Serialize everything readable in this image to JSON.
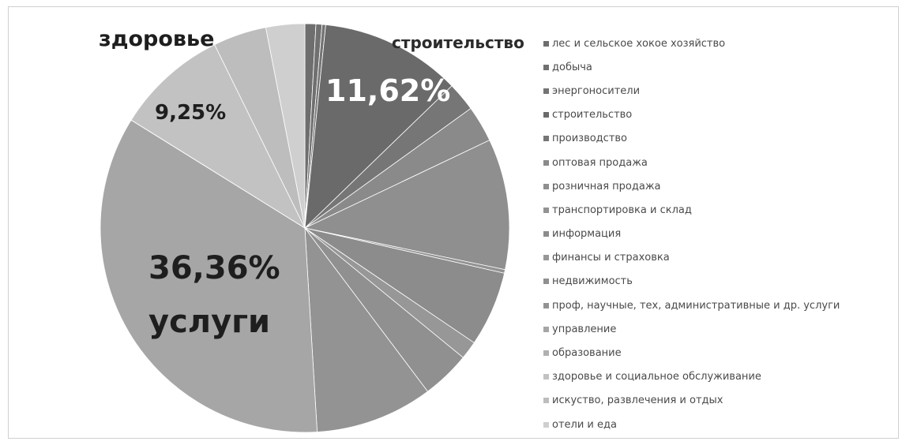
{
  "chart_data": {
    "type": "pie",
    "start_angle_deg": 0,
    "direction": "clockwise",
    "legend_position": "right",
    "labels": {
      "construction_name": "строительство",
      "construction_pct": "11,62%",
      "health_name": "здоровье",
      "health_pct": "9,25%",
      "services_pct": "36,36%",
      "services_name": "услуги"
    },
    "slices": [
      {
        "name": "лес и сельское хокое хозяйство",
        "value": 0.9,
        "color": "#6e6e6e"
      },
      {
        "name": "добыча",
        "value": 0.5,
        "color": "#707070"
      },
      {
        "name": "энергоносители",
        "value": 0.3,
        "color": "#747474"
      },
      {
        "name": "строительство",
        "value": 11.62,
        "color": "#6a6a6a"
      },
      {
        "name": "производство",
        "value": 2.4,
        "color": "#767676"
      },
      {
        "name": "оптовая продажа",
        "value": 3.0,
        "color": "#8a8a8a"
      },
      {
        "name": "розничная продажа",
        "value": 10.8,
        "color": "#8f8f8f"
      },
      {
        "name": "транспортировка и склад",
        "value": 0.3,
        "color": "#939393"
      },
      {
        "name": "информация",
        "value": 6.2,
        "color": "#8c8c8c"
      },
      {
        "name": "финансы и страховка",
        "value": 1.5,
        "color": "#979797"
      },
      {
        "name": "недвижимость",
        "value": 4.0,
        "color": "#909090"
      },
      {
        "name": "проф, научные, тех, административные и др. услуги",
        "value": 9.7,
        "color": "#939393"
      },
      {
        "name": "управление",
        "value": 36.36,
        "color": "#a6a6a6"
      },
      {
        "name": "образование",
        "value": 0.01,
        "color": "#b0b0b0"
      },
      {
        "name": "здоровье и социальное обслуживание",
        "value": 9.25,
        "color": "#c2c2c2"
      },
      {
        "name": "искуство, развлечения и отдых",
        "value": 4.4,
        "color": "#bdbdbd"
      },
      {
        "name": "отели и еда",
        "value": 3.2,
        "color": "#cfcfcf"
      }
    ]
  }
}
